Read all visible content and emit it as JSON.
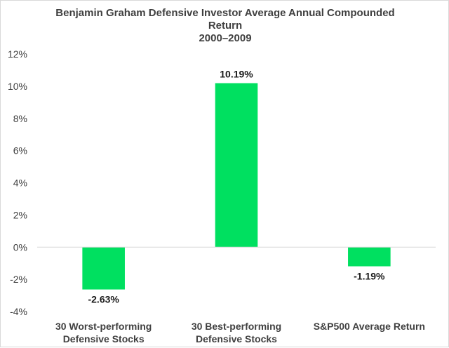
{
  "chart_data": {
    "type": "bar",
    "title_lines": [
      "Benjamin Graham Defensive Investor Average Annual Compounded",
      "Return",
      "2000–2009"
    ],
    "categories": [
      [
        "30 Worst-performing",
        "Defensive Stocks"
      ],
      [
        "30 Best-performing",
        "Defensive Stocks"
      ],
      [
        "S&P500 Average Return"
      ]
    ],
    "values": [
      -2.63,
      10.19,
      -1.19
    ],
    "data_labels": [
      "-2.63%",
      "10.19%",
      "-1.19%"
    ],
    "ylim": [
      -4,
      12
    ],
    "yticks": [
      12,
      10,
      8,
      6,
      4,
      2,
      0,
      -2,
      -4
    ],
    "ytick_labels": [
      "12%",
      "10%",
      "8%",
      "6%",
      "4%",
      "2%",
      "0%",
      "-2%",
      "-4%"
    ],
    "bar_color": "#00e060",
    "axis_color": "#d9d9d9",
    "grid": false,
    "legend": "none"
  }
}
